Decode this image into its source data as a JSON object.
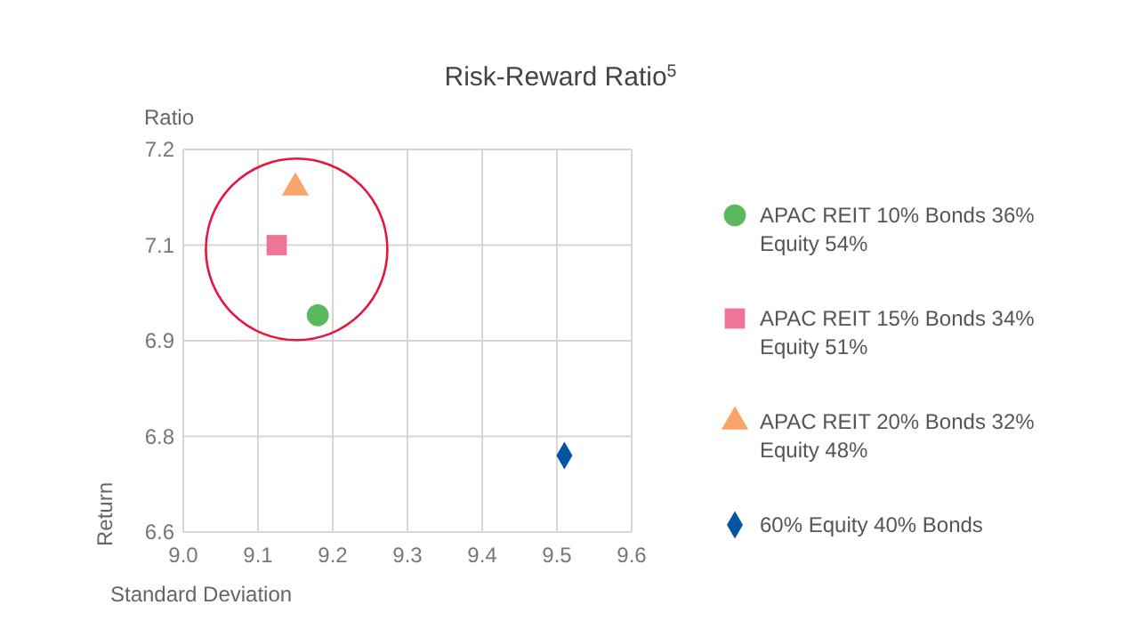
{
  "chart_data": {
    "type": "scatter",
    "title": "Risk-Reward Ratio$^{5}$",
    "xlabel": "Standard Deviation",
    "ylabel": "Return",
    "annotations": [
      "Ratio"
    ],
    "xlim": [
      9.0,
      9.6
    ],
    "xticks": [
      {
        "value": 9.0,
        "label": "9.0"
      },
      9.1,
      9.2,
      9.3,
      9.4,
      9.5,
      9.6
    ],
    "ylim": [
      6.6,
      7.2
    ],
    "yticks": [
      6.6,
      {
        "value": 6.75,
        "label": "6.8"
      },
      6.9,
      {
        "value": 7.05,
        "label": "7.1"
      },
      7.2
    ],
    "grid": true,
    "legend": "right",
    "series": [
      {
        "name": "APAC REIT 10% Bonds 36% Equity 54%",
        "color": "#5cb85c",
        "marker": "circle",
        "x": [
          9.18
        ],
        "values": [
          6.94
        ]
      },
      {
        "name": "APAC REIT 15% Bonds 34% Equity 51%",
        "color": "#f07496",
        "marker": "square",
        "x": [
          9.125
        ],
        "values": [
          7.05
        ]
      },
      {
        "name": "APAC REIT 20% Bonds 32% Equity 48%",
        "color": "#f9a56a",
        "marker": "triangle",
        "x": [
          9.15
        ],
        "values": [
          7.14
        ]
      },
      {
        "name": "60% Equity 40% Bonds",
        "color": "#0055a5",
        "marker": "diamond",
        "x": [
          9.51
        ],
        "values": [
          6.72
        ]
      }
    ]
  }
}
